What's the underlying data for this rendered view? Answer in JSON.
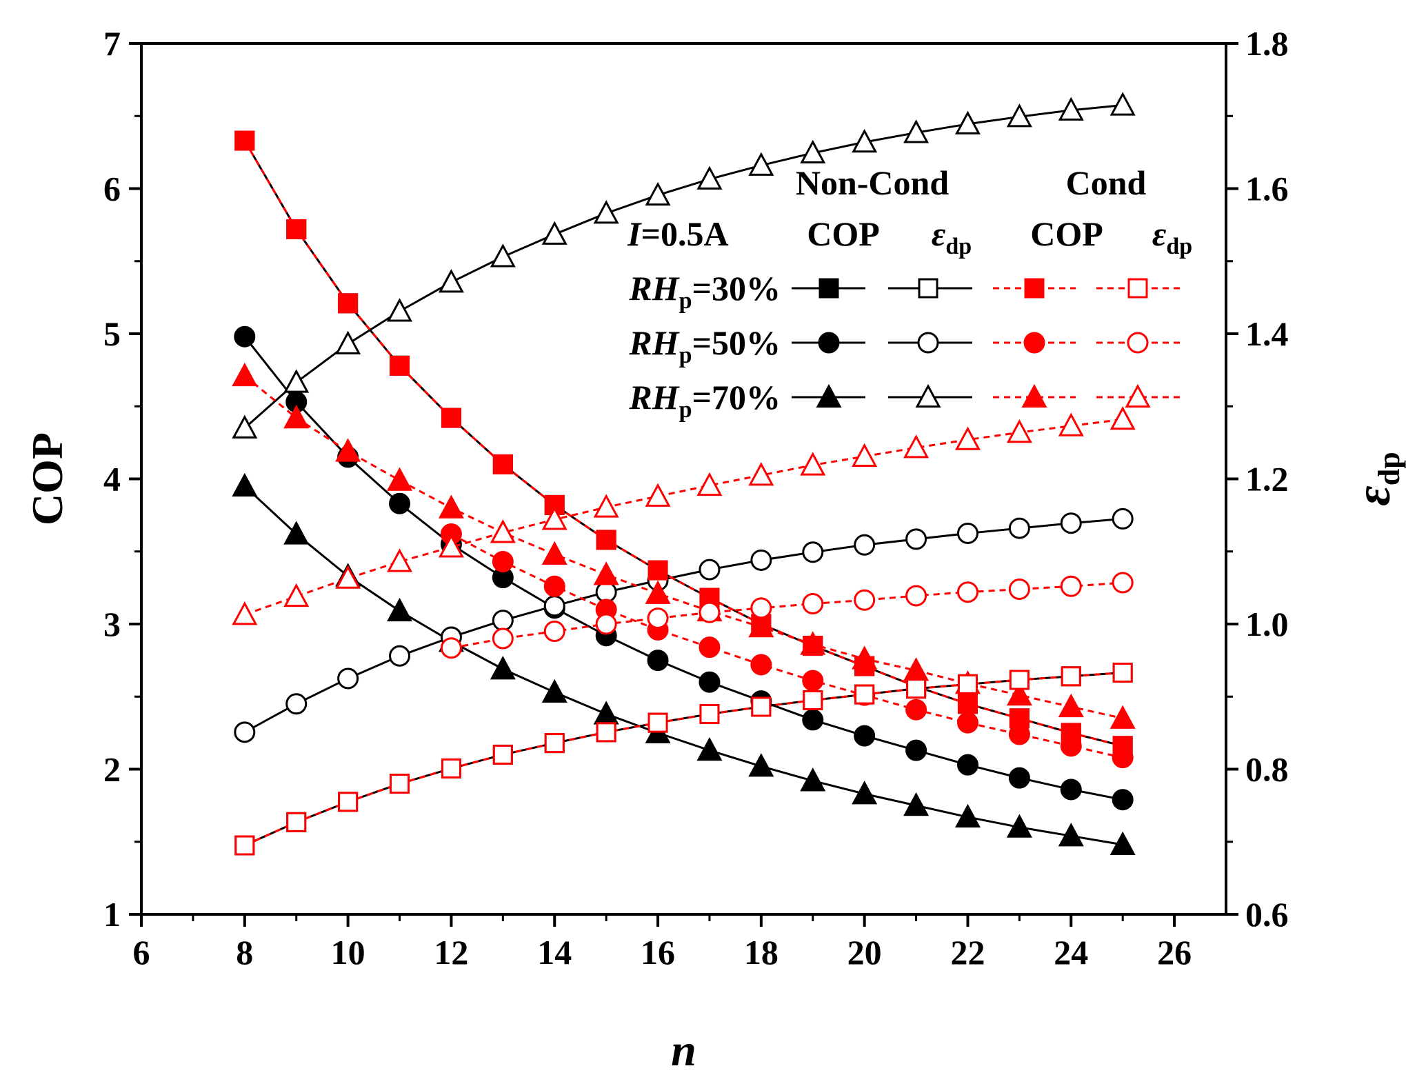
{
  "chart_data": {
    "type": "line",
    "xlabel": "n",
    "ylabel_left": "COP",
    "ylabel_right": {
      "symbol": "ε",
      "subscript": "dp"
    },
    "xlim": [
      6,
      27
    ],
    "ylim_left": [
      1,
      7
    ],
    "ylim_right": [
      0.6,
      1.8
    ],
    "x_ticks": [
      6,
      8,
      10,
      12,
      14,
      16,
      18,
      20,
      22,
      24,
      26
    ],
    "y_ticks_left": [
      1,
      2,
      3,
      4,
      5,
      6,
      7
    ],
    "y_ticks_right": [
      "0.6",
      "0.8",
      "1.0",
      "1.2",
      "1.4",
      "1.6",
      "1.8"
    ],
    "x": [
      8,
      9,
      10,
      11,
      12,
      13,
      14,
      15,
      16,
      17,
      18,
      19,
      20,
      21,
      22,
      23,
      24,
      25
    ],
    "legend": {
      "current_label": {
        "italic": "I",
        "text": "=0.5A"
      },
      "group_headers": [
        "Non-Cond",
        "Cond"
      ],
      "col_labels": [
        "COP",
        "COP"
      ],
      "eps_label": {
        "symbol": "ε",
        "subscript": "dp"
      },
      "rows": [
        {
          "italic": "RH",
          "subscript": "p",
          "text": "=30%"
        },
        {
          "italic": "RH",
          "subscript": "p",
          "text": "=50%"
        },
        {
          "italic": "RH",
          "subscript": "p",
          "text": "=70%"
        }
      ]
    },
    "colors": {
      "noncond": "#000000",
      "cond": "#ff0000"
    },
    "series": [
      {
        "name": "Non-Cond COP RHp=30%",
        "axis": "left",
        "condition": "noncond",
        "marker": "square",
        "filled": true,
        "values": [
          6.33,
          5.72,
          5.21,
          4.78,
          4.42,
          4.1,
          3.82,
          3.58,
          3.37,
          3.18,
          3.0,
          2.85,
          2.71,
          2.57,
          2.45,
          2.35,
          2.25,
          2.16
        ]
      },
      {
        "name": "Non-Cond COP RHp=50%",
        "axis": "left",
        "condition": "noncond",
        "marker": "circle",
        "filled": true,
        "values": [
          4.98,
          4.53,
          4.15,
          3.83,
          3.55,
          3.32,
          3.11,
          2.92,
          2.75,
          2.6,
          2.47,
          2.34,
          2.23,
          2.13,
          2.03,
          1.94,
          1.86,
          1.79
        ]
      },
      {
        "name": "Non-Cond COP RHp=70%",
        "axis": "left",
        "condition": "noncond",
        "marker": "triangle",
        "filled": true,
        "values": [
          3.95,
          3.62,
          3.33,
          3.09,
          2.88,
          2.69,
          2.53,
          2.38,
          2.25,
          2.13,
          2.02,
          1.92,
          1.83,
          1.75,
          1.67,
          1.6,
          1.54,
          1.48
        ]
      },
      {
        "name": "Non-Cond eps_dp RHp=30%",
        "axis": "right",
        "condition": "noncond",
        "marker": "square",
        "filled": false,
        "values": [
          0.695,
          0.727,
          0.755,
          0.78,
          0.801,
          0.82,
          0.836,
          0.851,
          0.864,
          0.876,
          0.886,
          0.895,
          0.903,
          0.911,
          0.917,
          0.923,
          0.928,
          0.933
        ]
      },
      {
        "name": "Non-Cond eps_dp RHp=50%",
        "axis": "right",
        "condition": "noncond",
        "marker": "circle",
        "filled": false,
        "values": [
          0.851,
          0.89,
          0.925,
          0.956,
          0.982,
          1.005,
          1.025,
          1.044,
          1.06,
          1.075,
          1.088,
          1.099,
          1.109,
          1.117,
          1.125,
          1.132,
          1.139,
          1.145
        ]
      },
      {
        "name": "Non-Cond eps_dp RHp=70%",
        "axis": "right",
        "condition": "noncond",
        "marker": "triangle",
        "filled": false,
        "values": [
          1.27,
          1.333,
          1.386,
          1.431,
          1.471,
          1.506,
          1.537,
          1.566,
          1.591,
          1.613,
          1.632,
          1.649,
          1.664,
          1.677,
          1.689,
          1.699,
          1.708,
          1.715
        ]
      },
      {
        "name": "Cond COP RHp=30%",
        "axis": "left",
        "condition": "cond",
        "marker": "square",
        "filled": true,
        "values": [
          6.33,
          5.72,
          5.21,
          4.78,
          4.42,
          4.1,
          3.82,
          3.58,
          3.37,
          3.18,
          3.0,
          2.85,
          2.71,
          2.57,
          2.45,
          2.35,
          2.25,
          2.16
        ]
      },
      {
        "name": "Cond COP RHp=50%",
        "axis": "left",
        "condition": "cond",
        "marker": "circle",
        "filled": true,
        "values": [
          null,
          null,
          null,
          null,
          3.62,
          3.43,
          3.26,
          3.1,
          2.96,
          2.84,
          2.72,
          2.61,
          2.51,
          2.41,
          2.32,
          2.24,
          2.16,
          2.08
        ]
      },
      {
        "name": "Cond COP RHp=70%",
        "axis": "left",
        "condition": "cond",
        "marker": "triangle",
        "filled": true,
        "values": [
          4.71,
          4.42,
          4.19,
          3.99,
          3.8,
          3.63,
          3.48,
          3.34,
          3.21,
          3.09,
          2.98,
          2.86,
          2.76,
          2.68,
          2.59,
          2.51,
          2.43,
          2.35
        ]
      },
      {
        "name": "Cond eps_dp RHp=30%",
        "axis": "right",
        "condition": "cond",
        "marker": "square",
        "filled": false,
        "values": [
          0.695,
          0.727,
          0.755,
          0.78,
          0.801,
          0.82,
          0.836,
          0.851,
          0.864,
          0.876,
          0.886,
          0.895,
          0.903,
          0.911,
          0.917,
          0.923,
          0.928,
          0.933
        ]
      },
      {
        "name": "Cond eps_dp RHp=50%",
        "axis": "right",
        "condition": "cond",
        "marker": "circle",
        "filled": false,
        "values": [
          null,
          null,
          null,
          null,
          0.967,
          0.98,
          0.99,
          1.0,
          1.008,
          1.016,
          1.022,
          1.028,
          1.033,
          1.039,
          1.044,
          1.048,
          1.052,
          1.057
        ]
      },
      {
        "name": "Cond eps_dp RHp=70%",
        "axis": "right",
        "condition": "cond",
        "marker": "triangle",
        "filled": false,
        "values": [
          1.013,
          1.038,
          1.063,
          1.086,
          1.106,
          1.126,
          1.144,
          1.161,
          1.176,
          1.191,
          1.205,
          1.219,
          1.231,
          1.243,
          1.254,
          1.264,
          1.273,
          1.282
        ]
      }
    ]
  }
}
